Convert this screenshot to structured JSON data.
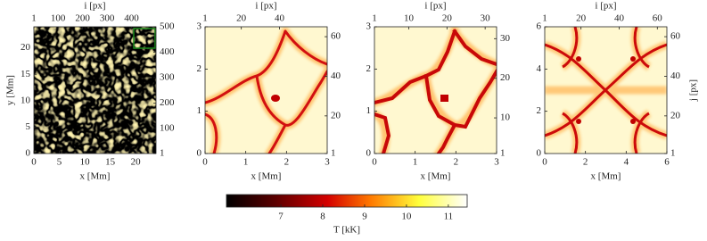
{
  "chart_data": [
    {
      "type": "heatmap",
      "xlabel": "x [Mm]",
      "ylabel": "y [Mm]",
      "x2label": "i [px]",
      "xlim": [
        0,
        24
      ],
      "xticks": [
        0,
        5,
        10,
        15,
        20
      ],
      "ylim": [
        0,
        24
      ],
      "yticks": [
        0,
        5,
        10,
        15,
        20
      ],
      "x2lim": [
        1,
        500
      ],
      "x2ticks": [
        1,
        100,
        200,
        300,
        400
      ],
      "y2lim": [
        1,
        500
      ],
      "y2ticks": [
        1,
        100,
        200,
        300,
        400,
        500
      ],
      "secondary_axis_color": "#1a1aff"
    },
    {
      "type": "heatmap",
      "xlabel": "x [Mm]",
      "x2label": "i [px]",
      "xlim": [
        0,
        3
      ],
      "xticks": [
        0,
        1,
        2,
        3
      ],
      "ylim": [
        0,
        3
      ],
      "yticks": [
        0,
        1,
        2,
        3
      ],
      "x2lim": [
        1,
        65
      ],
      "x2ticks": [
        1,
        20,
        40
      ],
      "y2lim": [
        1,
        65
      ],
      "y2ticks": [
        1,
        20,
        40,
        60
      ],
      "secondary_axis_color": "#1a1aff"
    },
    {
      "type": "heatmap",
      "xlabel": "x [Mm]",
      "x2label": "i [px]",
      "xlim": [
        0,
        3
      ],
      "xticks": [
        0,
        1,
        2,
        3
      ],
      "ylim": [
        0,
        3
      ],
      "yticks": [
        0,
        1,
        2,
        3
      ],
      "x2lim": [
        1,
        33
      ],
      "x2ticks": [
        1,
        10,
        20,
        30
      ],
      "y2lim": [
        1,
        33
      ],
      "y2ticks": [
        1,
        10,
        20,
        30
      ],
      "secondary_axis_color": "#1a1aff"
    },
    {
      "type": "heatmap",
      "xlabel": "x [Mm]",
      "x2label": "i [px]",
      "y2label": "j [px]",
      "xlim": [
        0,
        6
      ],
      "xticks": [
        0,
        2,
        4,
        6
      ],
      "ylim": [
        0,
        6
      ],
      "yticks": [
        0,
        2,
        4,
        6
      ],
      "x2lim": [
        1,
        65
      ],
      "x2ticks": [
        1,
        20,
        40,
        60
      ],
      "y2lim": [
        1,
        65
      ],
      "y2ticks": [
        1,
        20,
        40,
        60
      ],
      "secondary_axis_color": "#1a1aff"
    },
    {
      "type": "colorbar",
      "xlabel": "T [kK]",
      "xlim": [
        5.7,
        11.45
      ],
      "xticks": [
        7,
        8,
        9,
        10,
        11
      ]
    }
  ]
}
